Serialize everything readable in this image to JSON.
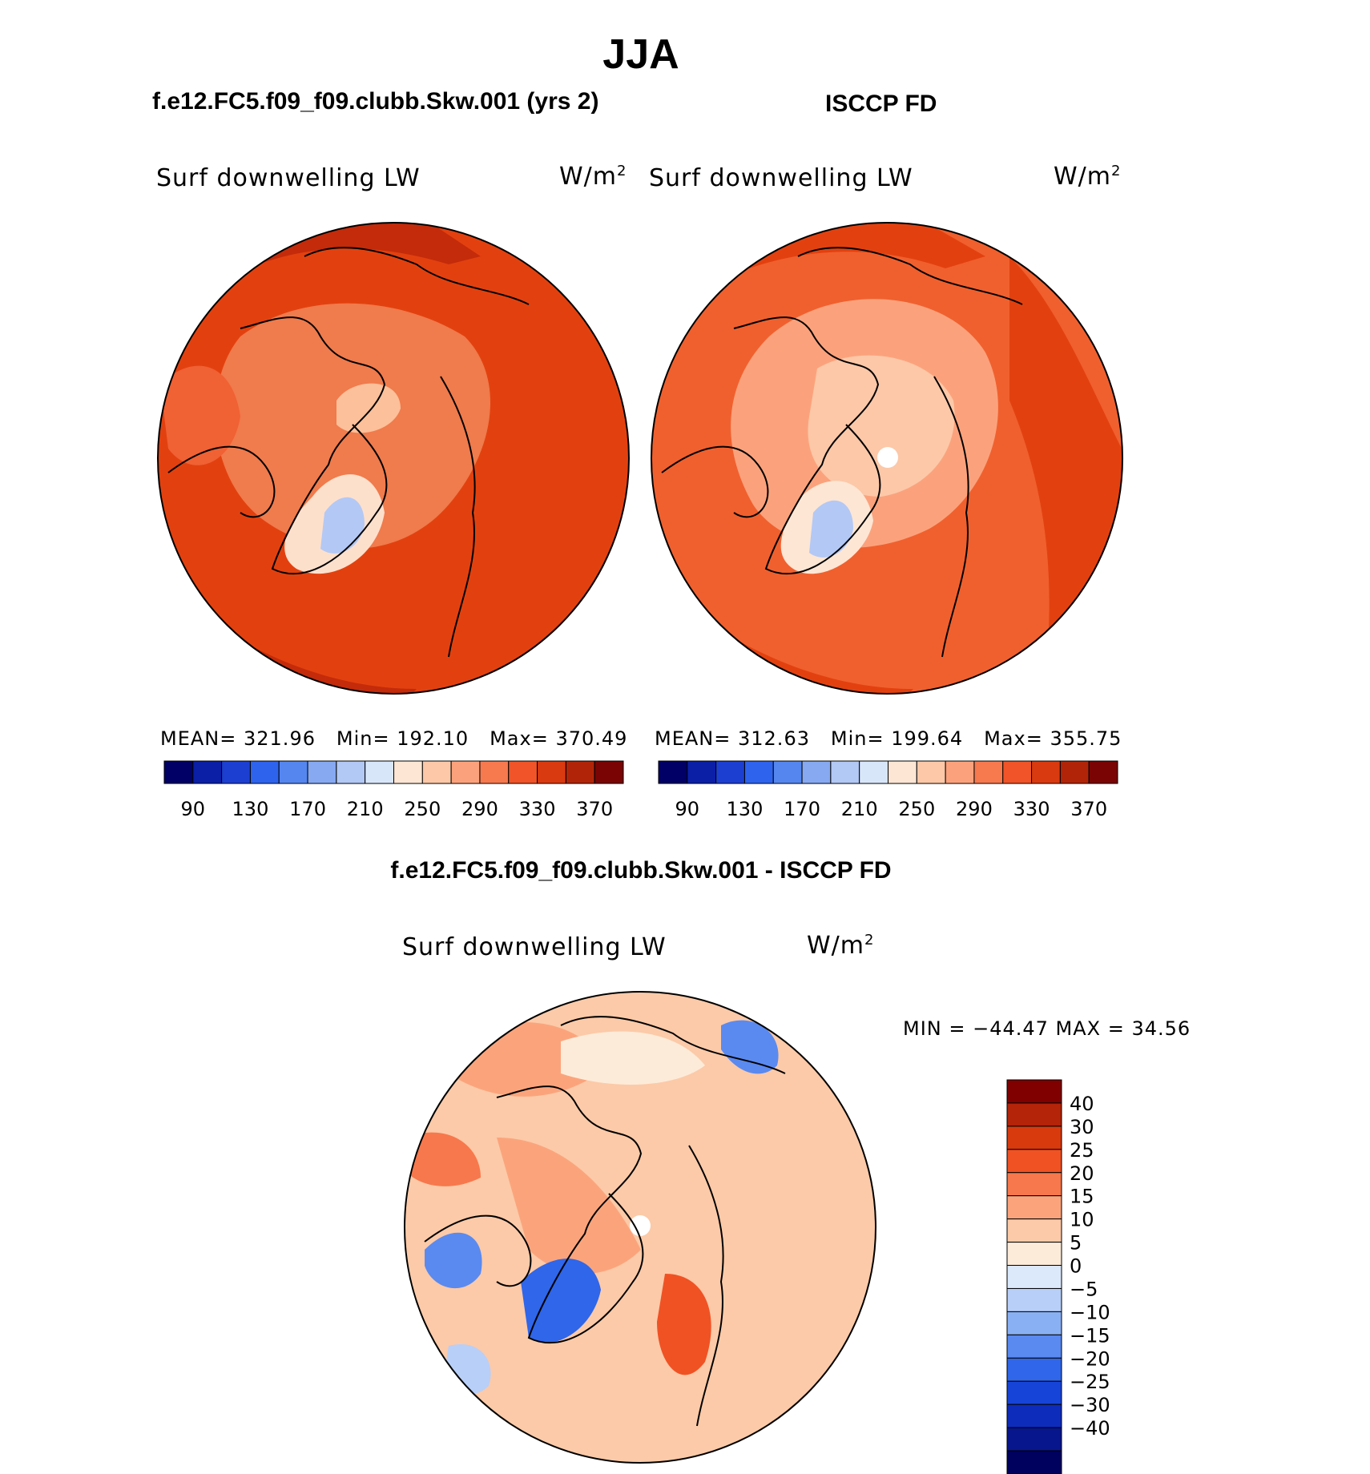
{
  "figure_title": "JJA",
  "panels": [
    {
      "title": "f.e12.FC5.f09_f09.clubb.Skw.001 (yrs 2)",
      "variable_label": "Surf downwelling LW",
      "units_base": "W/m",
      "units_exp": "2",
      "mean_label": "MEAN=",
      "mean": "321.96",
      "min_label": "Min=",
      "min": "192.10",
      "max_label": "Max=",
      "max": "370.49"
    },
    {
      "title": "ISCCP FD",
      "variable_label": "Surf downwelling LW",
      "units_base": "W/m",
      "units_exp": "2",
      "mean_label": "MEAN=",
      "mean": "312.63",
      "min_label": "Min=",
      "min": "199.64",
      "max_label": "Max=",
      "max": "355.75"
    },
    {
      "title": "f.e12.FC5.f09_f09.clubb.Skw.001 - ISCCP FD",
      "variable_label": "Surf downwelling LW",
      "units_base": "W/m",
      "units_exp": "2",
      "minmax_text": "MIN = −44.47 MAX =   34.56"
    }
  ],
  "colorbar_field": {
    "colors": [
      "#000066",
      "#0a1fa6",
      "#1c3fd2",
      "#2e63ee",
      "#5586f0",
      "#86a9f2",
      "#b2c8f5",
      "#d8e6fa",
      "#fde6d4",
      "#fcc8a8",
      "#fba27c",
      "#f7794e",
      "#f05428",
      "#da3a10",
      "#b22408",
      "#7a0404"
    ],
    "tick_labels": [
      "90",
      "130",
      "170",
      "210",
      "250",
      "290",
      "330",
      "370"
    ]
  },
  "colorbar_diff": {
    "colors": [
      "#00005e",
      "#07168c",
      "#0d2cbb",
      "#1744d8",
      "#2f66ea",
      "#5a8af0",
      "#8ab0f4",
      "#b8cff8",
      "#dbe9fb",
      "#fdebd9",
      "#fccaa8",
      "#fba47c",
      "#f7784c",
      "#f05224",
      "#d83a0e",
      "#b32408",
      "#800000"
    ],
    "tick_labels": [
      "40",
      "30",
      "25",
      "20",
      "15",
      "10",
      "5",
      "0",
      "−5",
      "−10",
      "−15",
      "−20",
      "−25",
      "−30",
      "−40"
    ]
  },
  "chart_data": [
    {
      "type": "heatmap",
      "title": "f.e12.FC5.f09_f09.clubb.Skw.001 (yrs 2)",
      "projection": "north-polar-stereographic",
      "variable": "Surf downwelling LW",
      "units": "W/m2",
      "season": "JJA",
      "mean": 321.96,
      "min": 192.1,
      "max": 370.49,
      "contour_levels": [
        90,
        110,
        130,
        150,
        170,
        190,
        210,
        230,
        250,
        270,
        290,
        310,
        330,
        350,
        370
      ]
    },
    {
      "type": "heatmap",
      "title": "ISCCP FD",
      "projection": "north-polar-stereographic",
      "variable": "Surf downwelling LW",
      "units": "W/m2",
      "season": "JJA",
      "mean": 312.63,
      "min": 199.64,
      "max": 355.75,
      "contour_levels": [
        90,
        110,
        130,
        150,
        170,
        190,
        210,
        230,
        250,
        270,
        290,
        310,
        330,
        350,
        370
      ]
    },
    {
      "type": "heatmap",
      "title": "f.e12.FC5.f09_f09.clubb.Skw.001 - ISCCP FD",
      "projection": "north-polar-stereographic",
      "variable": "Surf downwelling LW",
      "units": "W/m2",
      "season": "JJA",
      "min": -44.47,
      "max": 34.56,
      "contour_levels": [
        -40,
        -30,
        -25,
        -20,
        -15,
        -10,
        -5,
        0,
        5,
        10,
        15,
        20,
        25,
        30,
        40
      ]
    }
  ]
}
